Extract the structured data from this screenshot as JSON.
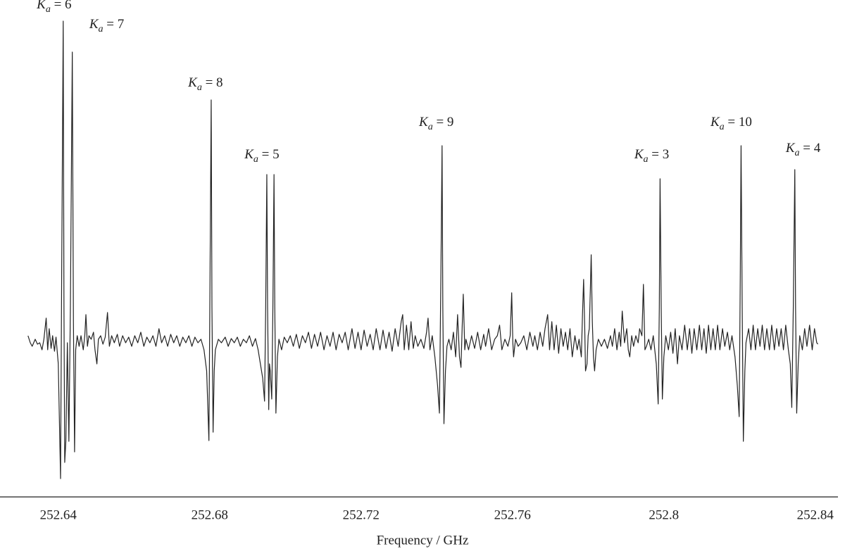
{
  "chart_data": {
    "type": "line",
    "xlabel": "Frequency / GHz",
    "color": "#222222",
    "xlim": [
      252.6246,
      252.846
    ],
    "ylim": [
      -2.19,
      4.87
    ],
    "xticks": [
      252.64,
      252.68,
      252.72,
      252.76,
      252.8,
      252.84
    ],
    "annotations": [
      {
        "text": "Ka = 6",
        "x": 252.6389,
        "y": 4.75
      },
      {
        "text": "Ka = 7",
        "x": 252.6528,
        "y": 4.47
      },
      {
        "text": "Ka = 8",
        "x": 252.6789,
        "y": 3.64
      },
      {
        "text": "Ka = 5",
        "x": 252.6938,
        "y": 2.62
      },
      {
        "text": "Ka = 9",
        "x": 252.7399,
        "y": 3.08
      },
      {
        "text": "Ka = 3",
        "x": 252.7968,
        "y": 2.62
      },
      {
        "text": "Ka = 10",
        "x": 252.8178,
        "y": 3.08
      },
      {
        "text": "Ka = 4",
        "x": 252.8368,
        "y": 2.71
      }
    ],
    "x": [
      252.632,
      252.6326,
      252.6331,
      252.6339,
      252.6345,
      252.6351,
      252.6357,
      252.6362,
      252.6368,
      252.6372,
      252.6376,
      252.6381,
      252.6385,
      252.639,
      252.6394,
      252.64,
      252.6406,
      252.6409,
      252.6413,
      252.6415,
      252.6417,
      252.642,
      252.6424,
      252.6428,
      252.6432,
      252.6437,
      252.644,
      252.6443,
      252.6446,
      252.645,
      252.6455,
      252.646,
      252.6466,
      252.647,
      252.6473,
      252.6477,
      252.6481,
      252.6487,
      252.6493,
      252.6497,
      252.6502,
      252.6506,
      252.6512,
      252.6518,
      252.6524,
      252.653,
      252.6535,
      252.6541,
      252.6548,
      252.6556,
      252.6562,
      252.657,
      252.6578,
      252.6586,
      252.6594,
      252.6602,
      252.661,
      252.6618,
      252.6626,
      252.6634,
      252.6642,
      252.665,
      252.6658,
      252.6666,
      252.6673,
      252.6681,
      252.6689,
      252.6697,
      252.6705,
      252.6713,
      252.6721,
      252.6729,
      252.6737,
      252.6745,
      252.6753,
      252.6761,
      252.6769,
      252.6777,
      252.6785,
      252.6792,
      252.6798,
      252.6801,
      252.6804,
      252.6806,
      252.6809,
      252.6812,
      252.6815,
      252.6823,
      252.6831,
      252.6841,
      252.6849,
      252.6857,
      252.6865,
      252.6873,
      252.6881,
      252.6889,
      252.6897,
      252.6905,
      252.6913,
      252.6921,
      252.6928,
      252.6934,
      252.694,
      252.6945,
      252.6948,
      252.6951,
      252.6953,
      252.6956,
      252.6958,
      252.696,
      252.6964,
      252.6967,
      252.697,
      252.6972,
      252.6975,
      252.6979,
      252.6983,
      252.699,
      252.6997,
      252.7005,
      252.7013,
      252.7021,
      252.7029,
      252.7037,
      252.7045,
      252.7053,
      252.7061,
      252.7069,
      252.7077,
      252.7085,
      252.7093,
      252.7102,
      252.711,
      252.7118,
      252.7126,
      252.7134,
      252.7142,
      252.715,
      252.7158,
      252.7166,
      252.7176,
      252.7184,
      252.7192,
      252.72,
      252.7208,
      252.7216,
      252.7224,
      252.7232,
      252.724,
      252.725,
      252.7258,
      252.7266,
      252.7274,
      252.7282,
      252.729,
      252.7298,
      252.7306,
      252.731,
      252.7314,
      252.732,
      252.7326,
      252.7332,
      252.7338,
      252.7343,
      252.735,
      252.7358,
      252.7366,
      252.7373,
      252.7377,
      252.7382,
      252.7388,
      252.7395,
      252.7402,
      252.7407,
      252.7411,
      252.7414,
      252.7416,
      252.7419,
      252.7423,
      252.7427,
      252.7432,
      252.7438,
      252.7444,
      252.745,
      252.7455,
      252.746,
      252.7464,
      252.7467,
      252.747,
      252.7474,
      252.7477,
      252.7484,
      252.7492,
      252.75,
      252.7508,
      252.7516,
      252.7524,
      252.7529,
      252.7537,
      252.7545,
      252.7553,
      252.756,
      252.7566,
      252.7572,
      252.758,
      252.7588,
      252.7594,
      252.7598,
      252.7601,
      252.7603,
      252.7608,
      252.7615,
      252.7622,
      252.763,
      252.7638,
      252.7646,
      252.7654,
      252.7659,
      252.7666,
      252.7673,
      252.768,
      252.7686,
      252.7693,
      252.7698,
      252.7704,
      252.771,
      252.7716,
      252.7722,
      252.7728,
      252.7734,
      252.774,
      252.7746,
      252.7752,
      252.7758,
      252.7765,
      252.7771,
      252.7776,
      252.7782,
      252.7785,
      252.7788,
      252.7791,
      252.7793,
      252.7797,
      252.78,
      252.7803,
      252.7806,
      252.7808,
      252.7811,
      252.7814,
      252.7817,
      252.7821,
      252.7827,
      252.7835,
      252.7843,
      252.7851,
      252.7859,
      252.7864,
      252.787,
      252.7876,
      252.7882,
      252.7886,
      252.789,
      252.7896,
      252.7902,
      252.7906,
      252.791,
      252.7915,
      252.792,
      252.7926,
      252.7932,
      252.7936,
      252.7942,
      252.7946,
      252.795,
      252.7954,
      252.796,
      252.7966,
      252.7972,
      252.798,
      252.7985,
      252.7988,
      252.799,
      252.7993,
      252.7996,
      252.8,
      252.8005,
      252.8012,
      252.8018,
      252.8024,
      252.803,
      252.8036,
      252.8041,
      252.8048,
      252.8055,
      252.8062,
      252.8068,
      252.8074,
      252.808,
      252.8087,
      252.8094,
      252.81,
      252.8106,
      252.8112,
      252.8118,
      252.8124,
      252.813,
      252.8136,
      252.8142,
      252.8148,
      252.8155,
      252.8161,
      252.8168,
      252.8174,
      252.818,
      252.8188,
      252.8194,
      252.8199,
      252.8202,
      252.8204,
      252.8207,
      252.821,
      252.8214,
      252.8217,
      252.8224,
      252.823,
      252.8236,
      252.8242,
      252.8248,
      252.8254,
      252.826,
      252.8266,
      252.8272,
      252.8279,
      252.8285,
      252.8292,
      252.8298,
      252.8304,
      252.831,
      252.8316,
      252.8322,
      252.8329,
      252.8334,
      252.8338,
      252.8342,
      252.8346,
      252.8348,
      252.8351,
      252.8355,
      252.8359,
      252.8366,
      252.8372,
      252.8378,
      252.8385,
      252.8392,
      252.8398,
      252.8404,
      252.8407
    ],
    "values": [
      0.1,
      0.0,
      -0.05,
      0.05,
      -0.02,
      0.0,
      -0.1,
      0.05,
      0.35,
      -0.1,
      0.2,
      -0.08,
      0.1,
      -0.12,
      0.08,
      -0.3,
      -1.93,
      1.0,
      4.57,
      0.5,
      -1.7,
      -1.4,
      0.0,
      -1.4,
      0.5,
      4.13,
      0.3,
      -1.55,
      -0.1,
      0.1,
      -0.05,
      0.1,
      -0.1,
      0.1,
      0.4,
      -0.05,
      0.1,
      0.05,
      0.15,
      -0.1,
      -0.3,
      0.05,
      0.1,
      -0.02,
      0.08,
      0.43,
      -0.05,
      0.1,
      0.0,
      0.12,
      -0.05,
      0.1,
      0.0,
      0.08,
      -0.05,
      0.1,
      0.0,
      0.15,
      -0.05,
      0.08,
      0.0,
      0.1,
      -0.05,
      0.2,
      0.0,
      0.1,
      -0.05,
      0.12,
      0.0,
      0.1,
      -0.05,
      0.08,
      0.0,
      0.1,
      -0.05,
      0.08,
      0.0,
      0.05,
      -0.1,
      -0.4,
      -1.39,
      1.0,
      3.45,
      0.5,
      -1.27,
      -0.4,
      -0.1,
      0.05,
      0.0,
      0.08,
      -0.05,
      0.06,
      0.0,
      0.08,
      -0.05,
      0.05,
      0.0,
      0.1,
      -0.05,
      0.06,
      -0.1,
      -0.3,
      -0.5,
      -0.83,
      0.5,
      2.39,
      0.5,
      -0.95,
      -0.3,
      -0.4,
      -0.8,
      0.5,
      2.39,
      0.5,
      -1.0,
      -0.2,
      0.05,
      -0.1,
      0.08,
      0.0,
      0.1,
      -0.05,
      0.12,
      -0.08,
      0.1,
      0.0,
      0.15,
      -0.08,
      0.12,
      -0.05,
      0.15,
      -0.1,
      0.1,
      -0.05,
      0.15,
      -0.1,
      0.12,
      0.0,
      0.15,
      -0.1,
      0.2,
      -0.08,
      0.15,
      -0.1,
      0.18,
      -0.05,
      0.12,
      -0.1,
      0.2,
      -0.1,
      0.18,
      -0.08,
      0.15,
      -0.12,
      0.2,
      -0.05,
      0.3,
      0.4,
      -0.1,
      0.25,
      -0.1,
      0.3,
      -0.08,
      0.1,
      -0.05,
      0.05,
      -0.08,
      0.15,
      0.35,
      -0.1,
      0.1,
      -0.2,
      -0.6,
      -1.0,
      1.0,
      2.8,
      0.5,
      -1.15,
      -0.4,
      -0.05,
      0.05,
      -0.1,
      0.15,
      -0.2,
      0.4,
      -0.2,
      -0.35,
      0.2,
      0.69,
      -0.1,
      0.05,
      -0.1,
      0.1,
      -0.08,
      0.15,
      -0.1,
      0.12,
      -0.05,
      0.2,
      -0.1,
      0.05,
      0.1,
      0.25,
      -0.1,
      0.05,
      -0.05,
      0.1,
      0.71,
      0.0,
      -0.2,
      0.05,
      -0.05,
      0.0,
      0.1,
      -0.1,
      0.15,
      -0.05,
      0.1,
      -0.1,
      0.15,
      -0.05,
      0.2,
      0.4,
      -0.1,
      0.3,
      -0.1,
      0.25,
      -0.15,
      0.2,
      -0.05,
      0.15,
      -0.1,
      0.2,
      -0.2,
      0.1,
      -0.1,
      0.05,
      -0.2,
      0.4,
      0.9,
      0.2,
      -0.4,
      -0.3,
      0.1,
      0.2,
      0.8,
      1.25,
      0.3,
      -0.2,
      -0.4,
      -0.1,
      0.05,
      -0.05,
      0.05,
      -0.08,
      0.1,
      -0.05,
      0.2,
      -0.1,
      0.15,
      -0.05,
      0.45,
      0.0,
      0.2,
      -0.1,
      -0.2,
      0.1,
      -0.05,
      0.1,
      0.0,
      0.2,
      0.1,
      0.83,
      -0.1,
      -0.05,
      0.05,
      -0.1,
      0.1,
      -0.3,
      -0.87,
      0.5,
      2.33,
      0.5,
      -0.8,
      -0.2,
      0.1,
      -0.1,
      0.15,
      -0.15,
      0.2,
      -0.3,
      0.1,
      -0.1,
      0.25,
      -0.1,
      0.2,
      -0.15,
      0.2,
      -0.1,
      0.25,
      -0.1,
      0.2,
      -0.15,
      0.25,
      -0.1,
      0.2,
      -0.1,
      0.25,
      -0.1,
      0.2,
      -0.05,
      0.15,
      -0.1,
      0.1,
      -0.2,
      -0.6,
      -1.05,
      1.0,
      2.8,
      0.5,
      -1.4,
      -0.4,
      0.0,
      0.2,
      -0.1,
      0.25,
      -0.1,
      0.2,
      -0.05,
      0.25,
      -0.1,
      0.2,
      -0.1,
      0.25,
      -0.1,
      0.2,
      -0.05,
      0.2,
      -0.1,
      0.25,
      -0.1,
      -0.3,
      -0.92,
      0.5,
      2.46,
      0.5,
      -1.0,
      -0.3,
      0.1,
      -0.1,
      0.2,
      -0.05,
      0.25,
      -0.1,
      0.2,
      0.0,
      -0.02
    ]
  }
}
